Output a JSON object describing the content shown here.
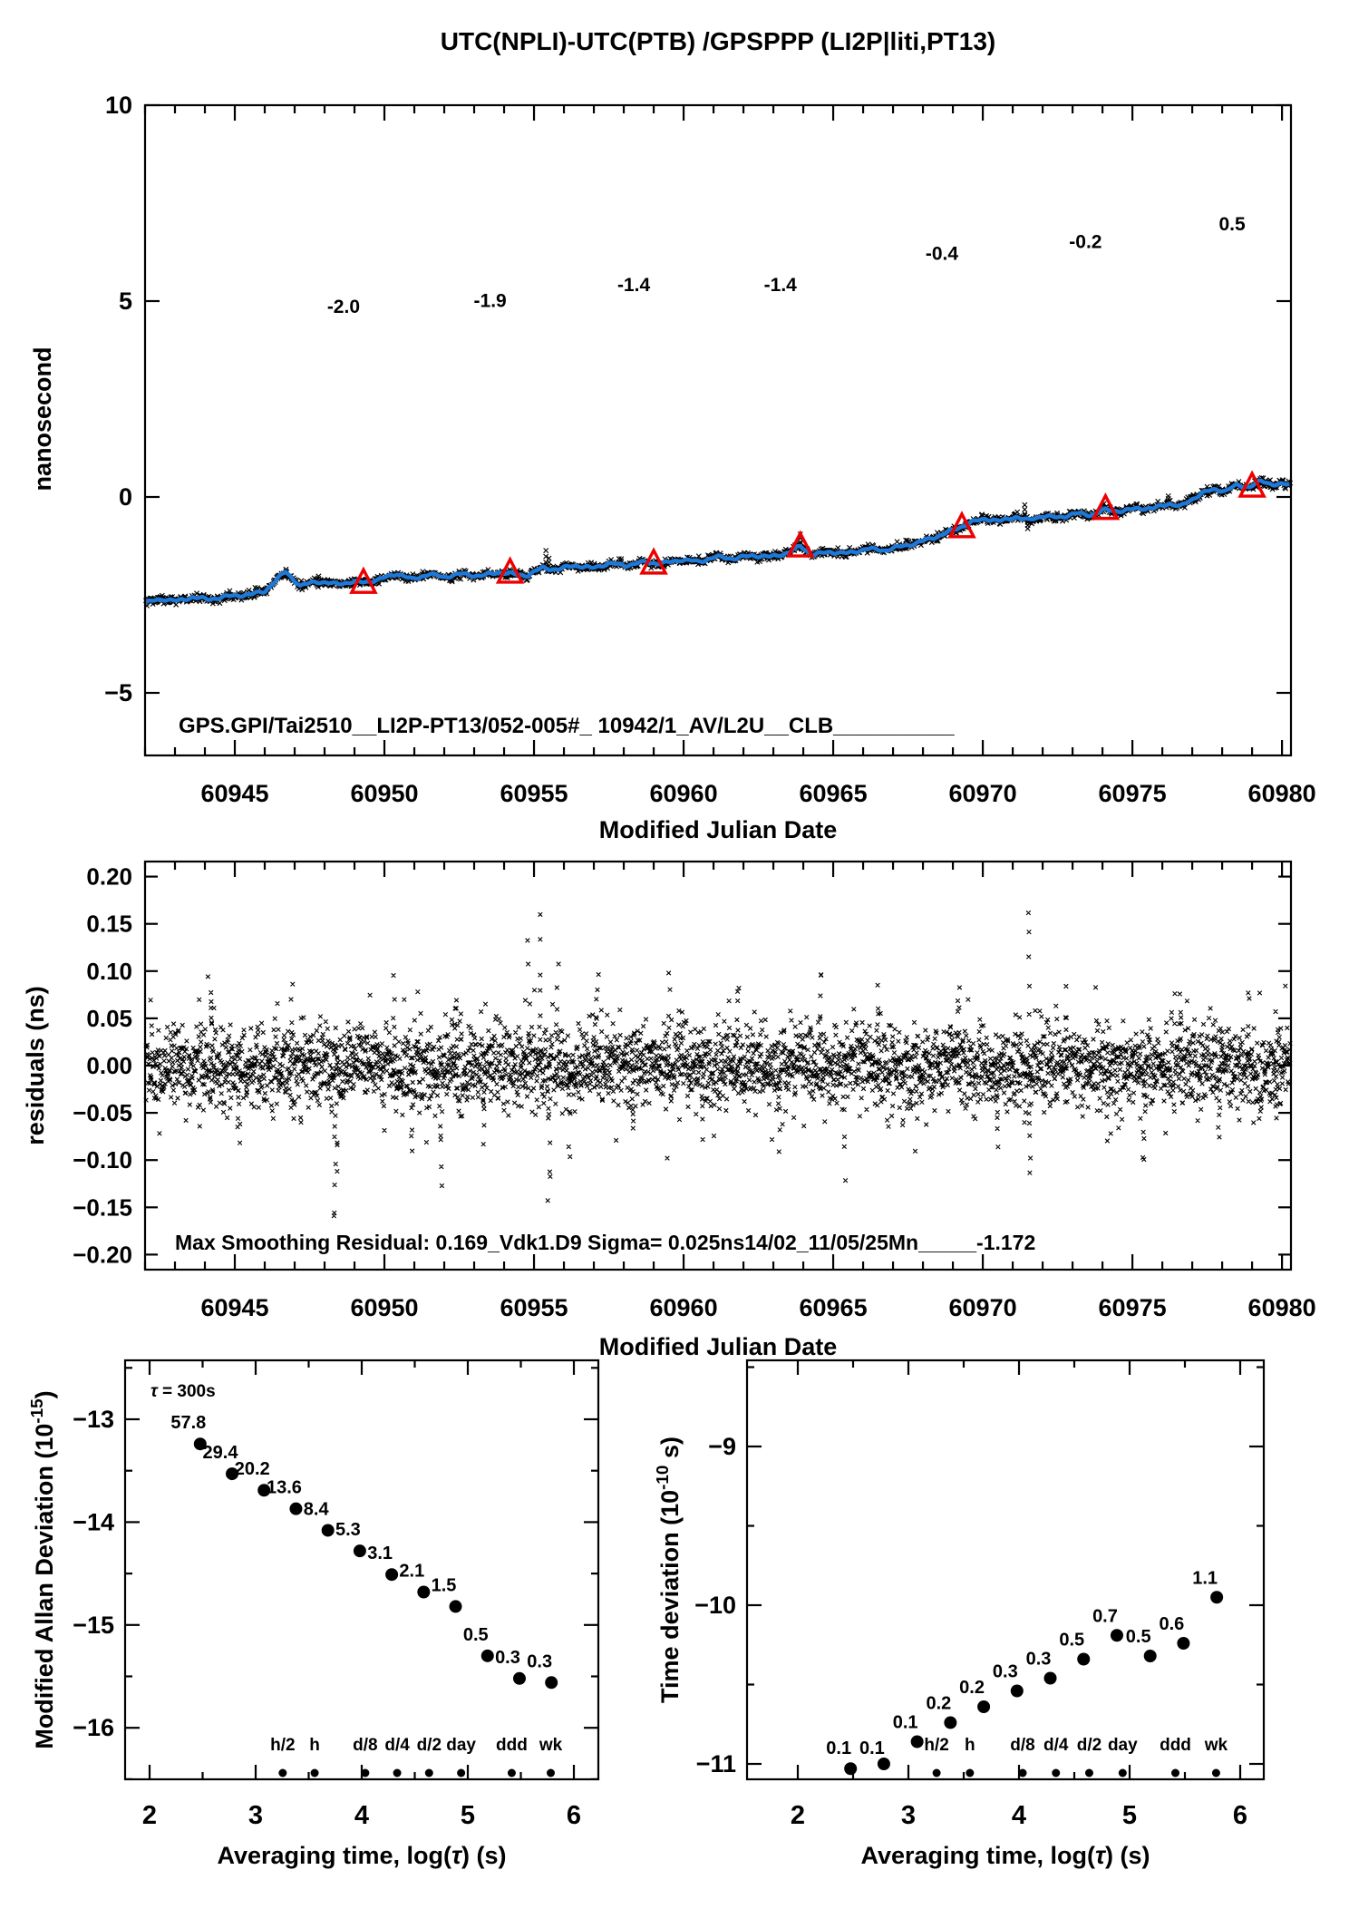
{
  "title": "UTC(NPLI)-UTC(PTB)  /GPSPPP  (LI2P|liti,PT13)",
  "colors": {
    "red": "#ee0000",
    "blue": "#1e78d7",
    "black": "#000000",
    "background": "#ffffff"
  },
  "axis_labels": {
    "mjd": "Modified Julian Date",
    "avg_pre": "Averaging time, log(",
    "avg_tau": "τ",
    "avg_post": ") (s)",
    "top_y": "nanosecond",
    "resid_y": "residuals (ns)",
    "mdev_pre": "Modified Allan Deviation (10",
    "mdev_sup": "-15",
    "mdev_post": ")",
    "tdev_pre": "Time deviation (10",
    "tdev_sup": "-10",
    "tdev_post": " s)"
  },
  "annotations": {
    "top": "GPS.GPI/Tai2510__LI2P-PT13/052-005#_  10942/1_AV/L2U__CLB__________",
    "residuals": "Max Smoothing Residual: 0.169_Vdk1.D9  Sigma= 0.025ns14/02_11/05/25Mn_____-1.172",
    "tau_pre": "τ",
    "tau_post": " = 300s"
  },
  "chart_data": [
    {
      "type": "line",
      "name": "utc-npli-minus-utc-ptb",
      "xlabel": "Modified Julian Date",
      "ylabel": "nanosecond",
      "xlim": [
        60942,
        60980.3
      ],
      "ylim": [
        -6.6,
        10
      ],
      "xticks": [
        60945,
        60950,
        60955,
        60960,
        60965,
        60970,
        60975,
        60980
      ],
      "xtick_labels": [
        "60945",
        "60950",
        "60955",
        "60960",
        "60965",
        "60970",
        "60975",
        "60980"
      ],
      "yticks": [
        10,
        5,
        0,
        -5
      ],
      "ytick_labels": [
        "10",
        "5",
        "0",
        "−5"
      ],
      "curve": [
        [
          60942.0,
          -2.7
        ],
        [
          60942.6,
          -2.6
        ],
        [
          60943.1,
          -2.66
        ],
        [
          60943.6,
          -2.55
        ],
        [
          60944.1,
          -2.62
        ],
        [
          60944.6,
          -2.55
        ],
        [
          60945.0,
          -2.52
        ],
        [
          60945.6,
          -2.48
        ],
        [
          60946.0,
          -2.4
        ],
        [
          60946.7,
          -1.9
        ],
        [
          60947.2,
          -2.28
        ],
        [
          60947.7,
          -2.15
        ],
        [
          60948.3,
          -2.22
        ],
        [
          60948.8,
          -2.18
        ],
        [
          60949.3,
          -2.17
        ],
        [
          60949.8,
          -2.12
        ],
        [
          60950.4,
          -1.95
        ],
        [
          60950.9,
          -2.1
        ],
        [
          60951.5,
          -1.97
        ],
        [
          60952.0,
          -2.04
        ],
        [
          60952.6,
          -1.96
        ],
        [
          60953.2,
          -2.02
        ],
        [
          60953.8,
          -1.92
        ],
        [
          60954.3,
          -1.97
        ],
        [
          60954.8,
          -2.0
        ],
        [
          60955.3,
          -1.8
        ],
        [
          60955.8,
          -1.86
        ],
        [
          60956.3,
          -1.74
        ],
        [
          60956.9,
          -1.82
        ],
        [
          60957.5,
          -1.7
        ],
        [
          60958.1,
          -1.74
        ],
        [
          60958.7,
          -1.66
        ],
        [
          60959.3,
          -1.7
        ],
        [
          60959.9,
          -1.6
        ],
        [
          60960.5,
          -1.65
        ],
        [
          60961.1,
          -1.53
        ],
        [
          60961.7,
          -1.57
        ],
        [
          60962.3,
          -1.49
        ],
        [
          60962.9,
          -1.53
        ],
        [
          60963.5,
          -1.42
        ],
        [
          60963.9,
          -1.25
        ],
        [
          60964.3,
          -1.48
        ],
        [
          60964.9,
          -1.4
        ],
        [
          60965.5,
          -1.44
        ],
        [
          60966.1,
          -1.32
        ],
        [
          60966.7,
          -1.36
        ],
        [
          60967.3,
          -1.26
        ],
        [
          60967.9,
          -1.15
        ],
        [
          60968.5,
          -1.0
        ],
        [
          60969.1,
          -0.82
        ],
        [
          60969.6,
          -0.65
        ],
        [
          60970.1,
          -0.55
        ],
        [
          60970.6,
          -0.62
        ],
        [
          60971.1,
          -0.5
        ],
        [
          60971.5,
          -0.6
        ],
        [
          60972.0,
          -0.48
        ],
        [
          60972.5,
          -0.53
        ],
        [
          60973.1,
          -0.42
        ],
        [
          60973.6,
          -0.46
        ],
        [
          60974.1,
          -0.33
        ],
        [
          60974.7,
          -0.36
        ],
        [
          60975.2,
          -0.28
        ],
        [
          60975.7,
          -0.3
        ],
        [
          60976.2,
          -0.16
        ],
        [
          60976.6,
          -0.25
        ],
        [
          60977.0,
          -0.05
        ],
        [
          60977.4,
          0.12
        ],
        [
          60977.8,
          0.2
        ],
        [
          60978.1,
          0.15
        ],
        [
          60978.5,
          0.3
        ],
        [
          60978.9,
          0.26
        ],
        [
          60979.3,
          0.4
        ],
        [
          60979.7,
          0.33
        ],
        [
          60980.3,
          0.31
        ]
      ],
      "calibration": {
        "mjd": [
          60949.3,
          60954.2,
          60959.0,
          60963.9,
          60969.3,
          60974.1,
          60979.0
        ],
        "value_labels": [
          "-2.0",
          "-1.9",
          "-1.4",
          "-1.4",
          "-0.4",
          "-0.2",
          "0.5"
        ],
        "label_y": [
          4.7,
          4.85,
          5.25,
          5.25,
          6.05,
          6.35,
          6.8
        ]
      },
      "noise": {
        "sigma": 0.05,
        "step": 0.0257
      },
      "spikes": [
        [
          60947.8,
          0.18
        ],
        [
          60955.4,
          0.45
        ],
        [
          60955.5,
          0.3
        ],
        [
          60963.9,
          0.3
        ],
        [
          60971.4,
          0.35
        ],
        [
          60971.5,
          -0.25
        ],
        [
          60976.2,
          0.2
        ]
      ]
    },
    {
      "type": "scatter",
      "name": "smoothing-residuals",
      "xlabel": "Modified Julian Date",
      "ylabel": "residuals (ns)",
      "xlim": [
        60942,
        60980.3
      ],
      "ylim": [
        -0.216,
        0.216
      ],
      "xticks": [
        60945,
        60950,
        60955,
        60960,
        60965,
        60970,
        60975,
        60980
      ],
      "xtick_labels": [
        "60945",
        "60950",
        "60955",
        "60960",
        "60965",
        "60970",
        "60975",
        "60980"
      ],
      "yticks": [
        0.2,
        0.15,
        0.1,
        0.05,
        0.0,
        -0.05,
        -0.1,
        -0.15,
        -0.2
      ],
      "ytick_labels": [
        "0.20",
        "0.15",
        "0.10",
        "0.05",
        "0.00",
        "−0.05",
        "−0.10",
        "−0.15",
        "−0.20"
      ],
      "noise": {
        "sigma": 0.025,
        "step": 0.01
      },
      "max_residual": 0.169,
      "sigma_ns": 0.025,
      "outliers": [
        [
          60944.2,
          0.08
        ],
        [
          60945.1,
          -0.07
        ],
        [
          60946.9,
          0.09
        ],
        [
          60948.35,
          -0.165
        ],
        [
          60948.4,
          -0.12
        ],
        [
          60950.3,
          0.1
        ],
        [
          60950.9,
          -0.09
        ],
        [
          60951.9,
          -0.12
        ],
        [
          60952.4,
          0.07
        ],
        [
          60953.3,
          -0.08
        ],
        [
          60954.8,
          0.13
        ],
        [
          60955.2,
          0.16
        ],
        [
          60955.5,
          -0.14
        ],
        [
          60955.8,
          0.11
        ],
        [
          60956.2,
          -0.1
        ],
        [
          60957.1,
          0.09
        ],
        [
          60958.3,
          -0.07
        ],
        [
          60959.5,
          0.1
        ],
        [
          60960.6,
          -0.08
        ],
        [
          60961.8,
          0.09
        ],
        [
          60963.2,
          -0.09
        ],
        [
          60964.6,
          0.1
        ],
        [
          60965.4,
          -0.12
        ],
        [
          60966.5,
          0.08
        ],
        [
          60967.8,
          -0.07
        ],
        [
          60969.2,
          0.09
        ],
        [
          60970.5,
          -0.08
        ],
        [
          60971.55,
          0.16
        ],
        [
          60971.6,
          -0.115
        ],
        [
          60972.8,
          0.07
        ],
        [
          60974.2,
          -0.08
        ],
        [
          60975.4,
          -0.105
        ],
        [
          60976.6,
          0.08
        ],
        [
          60977.9,
          -0.07
        ],
        [
          60978.9,
          0.085
        ],
        [
          60979.8,
          -0.06
        ]
      ]
    },
    {
      "type": "scatter",
      "name": "modified-allan-deviation",
      "xlabel": "Averaging time, log(τ) (s)",
      "ylabel": "Modified Allan Deviation (10-15)",
      "tau_annotation": "τ = 300s",
      "xlim": [
        1.76,
        6.24
      ],
      "ylim": [
        -16.5,
        -12.42
      ],
      "xticks": [
        2,
        3,
        4,
        5,
        6
      ],
      "xtick_labels": [
        "2",
        "3",
        "4",
        "5",
        "6"
      ],
      "yticks": [
        -13,
        -14,
        -15,
        -16
      ],
      "ytick_labels": [
        "−13",
        "−14",
        "−15",
        "−16"
      ],
      "x": [
        2.477,
        2.778,
        3.079,
        3.38,
        3.681,
        3.982,
        4.283,
        4.584,
        4.885,
        5.186,
        5.487,
        5.788
      ],
      "log_values": [
        -13.24,
        -13.53,
        -13.69,
        -13.87,
        -14.08,
        -14.28,
        -14.51,
        -14.68,
        -14.82,
        -15.3,
        -15.52,
        -15.56
      ],
      "value_labels": [
        "57.8",
        "29.4",
        "20.2",
        "13.6",
        "8.4",
        "5.3",
        "3.1",
        "2.1",
        "1.5",
        "0.5",
        "0.3",
        "0.3"
      ],
      "time_marks": {
        "labels": [
          "h/2",
          "h",
          "d/8",
          "d/4",
          "d/2",
          "day",
          "ddd",
          "wk"
        ],
        "logs": [
          3.255,
          3.556,
          4.033,
          4.334,
          4.635,
          4.937,
          5.414,
          5.782
        ]
      }
    },
    {
      "type": "scatter",
      "name": "time-deviation",
      "xlabel": "Averaging time, log(τ) (s)",
      "ylabel": "Time deviation (10-10 s)",
      "xlim": [
        1.76,
        6.21
      ],
      "ylim": [
        -11.07,
        -8.49
      ],
      "xticks": [
        2,
        3,
        4,
        5,
        6
      ],
      "xtick_labels": [
        "2",
        "3",
        "4",
        "5",
        "6"
      ],
      "yticks": [
        -9,
        -10,
        -11
      ],
      "ytick_labels": [
        "−9",
        "−10",
        "−11"
      ],
      "x": [
        2.477,
        2.778,
        3.079,
        3.38,
        3.681,
        3.982,
        4.283,
        4.584,
        4.885,
        5.186,
        5.487,
        5.788
      ],
      "log_values": [
        -11.03,
        -11.0,
        -10.86,
        -10.74,
        -10.64,
        -10.54,
        -10.46,
        -10.34,
        -10.19,
        -10.32,
        -10.24,
        -9.95
      ],
      "value_labels": [
        "0.1",
        "0.1",
        "0.1",
        "0.2",
        "0.2",
        "0.3",
        "0.3",
        "0.5",
        "0.7",
        "0.5",
        "0.6",
        "1.1"
      ],
      "time_marks": {
        "labels": [
          "h/2",
          "h",
          "d/8",
          "d/4",
          "d/2",
          "day",
          "ddd",
          "wk"
        ],
        "logs": [
          3.255,
          3.556,
          4.033,
          4.334,
          4.635,
          4.937,
          5.414,
          5.782
        ]
      }
    }
  ]
}
